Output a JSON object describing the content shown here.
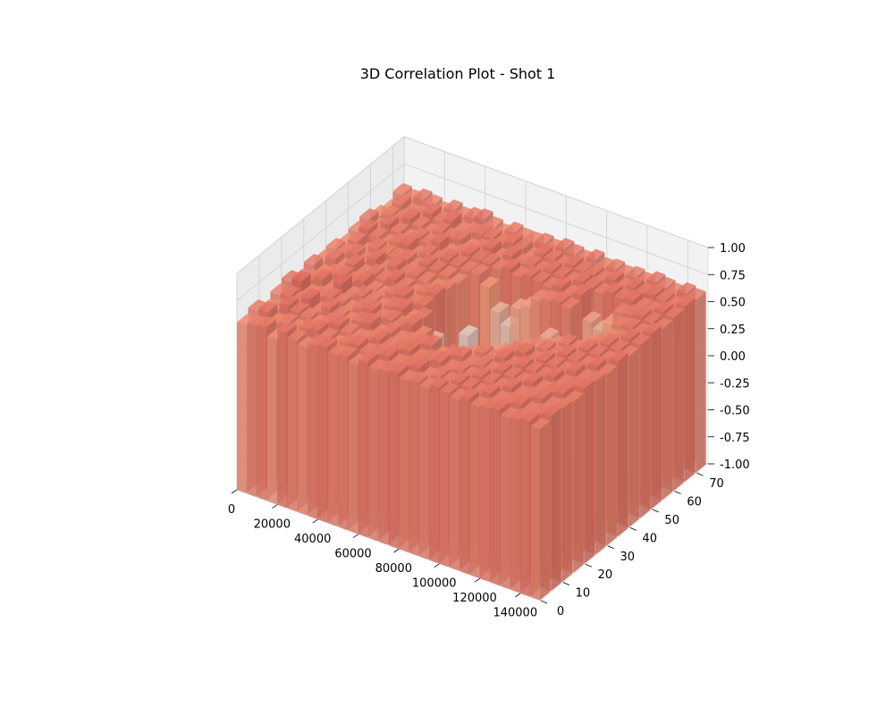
{
  "chart_data": {
    "type": "bar3d",
    "title": "3D Correlation Plot - Shot 1",
    "xlabel": "",
    "ylabel": "",
    "zlabel": "",
    "xlim": [
      0,
      150000
    ],
    "ylim": [
      0,
      75
    ],
    "zlim": [
      -1.0,
      1.0
    ],
    "x_ticks": [
      0,
      20000,
      40000,
      60000,
      80000,
      100000,
      120000,
      140000
    ],
    "y_ticks": [
      0,
      10,
      20,
      30,
      40,
      50,
      60,
      70
    ],
    "z_ticks": [
      "-1.00",
      "-0.75",
      "-0.50",
      "-0.25",
      "0.00",
      "0.25",
      "0.50",
      "0.75",
      "1.00"
    ],
    "colormap": "coolwarm",
    "grid": true,
    "x_bins": [
      0,
      5000,
      10000,
      15000,
      20000,
      25000,
      30000,
      35000,
      40000,
      45000,
      50000,
      55000,
      60000,
      65000,
      70000,
      75000,
      80000,
      85000,
      90000,
      95000,
      100000,
      105000,
      110000,
      115000,
      120000,
      125000,
      130000,
      135000,
      140000,
      145000
    ],
    "y_bins": [
      0,
      5,
      10,
      15,
      20,
      25,
      30,
      35,
      40,
      45,
      50,
      55,
      60,
      65,
      70
    ],
    "bar_base": -1.0,
    "values": [
      [
        0.55,
        0.6,
        0.52,
        0.58,
        0.62,
        0.55,
        0.6,
        0.56,
        0.58,
        0.54,
        0.57,
        0.6,
        0.55,
        0.52,
        0.58
      ],
      [
        0.58,
        0.62,
        0.56,
        0.6,
        0.65,
        0.58,
        0.54,
        0.6,
        0.57,
        0.59,
        0.62,
        0.55,
        0.58,
        0.6,
        0.56
      ],
      [
        0.6,
        0.55,
        0.63,
        0.58,
        0.56,
        0.62,
        0.58,
        0.55,
        0.6,
        0.52,
        0.58,
        0.62,
        0.57,
        0.55,
        0.6
      ],
      [
        0.52,
        0.58,
        0.6,
        0.64,
        0.58,
        0.55,
        0.6,
        0.62,
        0.56,
        0.6,
        0.55,
        0.58,
        0.62,
        0.56,
        0.58
      ],
      [
        0.62,
        0.56,
        0.58,
        0.55,
        0.6,
        0.65,
        0.58,
        0.56,
        0.62,
        0.58,
        0.6,
        0.55,
        0.58,
        0.62,
        0.55
      ],
      [
        0.58,
        0.6,
        0.55,
        0.62,
        0.58,
        0.56,
        0.62,
        0.6,
        0.55,
        0.58,
        0.62,
        0.6,
        0.55,
        0.58,
        0.6
      ],
      [
        0.55,
        0.62,
        0.6,
        0.58,
        0.55,
        0.6,
        0.56,
        0.58,
        0.62,
        0.6,
        0.55,
        0.58,
        0.6,
        0.62,
        0.57
      ],
      [
        0.6,
        0.58,
        0.62,
        0.56,
        0.6,
        0.58,
        0.55,
        0.62,
        0.58,
        0.56,
        0.6,
        0.62,
        0.58,
        0.55,
        0.6
      ],
      [
        0.62,
        0.55,
        0.58,
        0.6,
        0.62,
        0.56,
        0.6,
        0.58,
        0.6,
        0.62,
        0.58,
        0.55,
        0.6,
        0.58,
        0.62
      ],
      [
        0.58,
        0.6,
        0.56,
        0.62,
        0.58,
        0.6,
        0.62,
        0.55,
        0.58,
        0.6,
        0.62,
        0.58,
        0.55,
        0.6,
        0.58
      ],
      [
        0.6,
        0.62,
        0.58,
        0.55,
        0.6,
        0.62,
        0.58,
        0.6,
        0.55,
        0.58,
        0.6,
        0.62,
        0.58,
        0.6,
        0.55
      ],
      [
        0.56,
        0.58,
        0.62,
        0.6,
        0.58,
        0.55,
        0.6,
        0.62,
        0.58,
        0.55,
        0.58,
        0.6,
        0.62,
        0.58,
        0.6
      ],
      [
        0.62,
        0.6,
        0.58,
        0.56,
        0.62,
        0.6,
        0.3,
        -0.1,
        -0.25,
        0.1,
        0.58,
        0.6,
        0.56,
        0.62,
        0.58
      ],
      [
        0.58,
        0.62,
        0.6,
        0.58,
        0.55,
        0.2,
        -0.2,
        -0.45,
        -0.3,
        -0.15,
        0.5,
        0.58,
        0.62,
        0.6,
        0.58
      ],
      [
        0.6,
        0.58,
        0.62,
        0.6,
        0.4,
        -0.1,
        -0.4,
        -0.6,
        -0.5,
        -0.2,
        0.3,
        0.62,
        0.58,
        0.55,
        0.6
      ],
      [
        0.62,
        0.6,
        0.58,
        0.62,
        0.3,
        -0.2,
        -0.55,
        -0.65,
        -0.45,
        -0.35,
        0.2,
        0.58,
        0.6,
        0.62,
        0.58
      ],
      [
        0.58,
        0.62,
        0.6,
        0.55,
        0.35,
        -0.05,
        -0.5,
        -0.6,
        -0.55,
        -0.25,
        0.4,
        0.62,
        0.58,
        0.6,
        0.62
      ],
      [
        0.6,
        0.56,
        0.62,
        0.6,
        0.5,
        0.1,
        -0.35,
        -0.55,
        -0.6,
        -0.3,
        0.45,
        0.6,
        0.62,
        0.58,
        0.6
      ],
      [
        0.58,
        0.6,
        0.58,
        0.62,
        0.55,
        0.35,
        -0.1,
        -0.4,
        -0.35,
        0.05,
        0.55,
        0.58,
        0.6,
        0.62,
        0.58
      ],
      [
        0.62,
        0.58,
        0.6,
        0.58,
        0.6,
        0.5,
        0.25,
        -0.2,
        -0.3,
        0.2,
        0.58,
        0.62,
        0.58,
        0.6,
        0.62
      ],
      [
        0.6,
        0.62,
        0.58,
        0.6,
        0.58,
        0.55,
        0.4,
        0.1,
        0.05,
        0.35,
        0.6,
        0.58,
        0.62,
        0.6,
        0.58
      ],
      [
        0.58,
        0.6,
        0.62,
        0.58,
        0.62,
        0.6,
        0.55,
        0.3,
        -0.15,
        0.3,
        0.58,
        0.62,
        0.6,
        0.58,
        0.6
      ],
      [
        0.62,
        0.58,
        0.6,
        0.62,
        0.58,
        0.62,
        0.58,
        0.5,
        0.1,
        -0.2,
        -0.35,
        0.4,
        0.58,
        0.62,
        0.58
      ],
      [
        0.58,
        0.62,
        0.58,
        0.6,
        0.62,
        0.58,
        0.6,
        0.55,
        0.3,
        -0.25,
        -0.4,
        0.35,
        0.62,
        0.58,
        0.6
      ],
      [
        0.6,
        0.58,
        0.62,
        0.58,
        0.6,
        0.62,
        0.58,
        0.6,
        0.45,
        0.1,
        -0.1,
        0.45,
        0.6,
        0.62,
        0.58
      ],
      [
        0.62,
        0.6,
        0.58,
        0.62,
        0.58,
        0.6,
        0.62,
        0.58,
        0.55,
        0.4,
        0.35,
        0.58,
        0.62,
        0.6,
        0.62
      ],
      [
        0.58,
        0.62,
        0.6,
        0.58,
        0.62,
        0.58,
        0.6,
        0.62,
        0.58,
        0.55,
        0.58,
        0.6,
        0.58,
        0.62,
        0.6
      ],
      [
        0.6,
        0.58,
        0.62,
        0.6,
        0.58,
        0.62,
        0.58,
        0.6,
        0.62,
        0.58,
        0.6,
        0.62,
        0.58,
        0.6,
        0.58
      ],
      [
        0.62,
        0.6,
        0.58,
        0.62,
        0.6,
        0.58,
        0.62,
        0.58,
        0.6,
        0.62,
        0.58,
        0.6,
        0.62,
        0.58,
        0.62
      ],
      [
        0.58,
        0.62,
        0.6,
        0.58,
        0.62,
        0.6,
        0.58,
        0.62,
        0.58,
        0.6,
        0.62,
        0.58,
        0.6,
        0.62,
        0.6
      ]
    ]
  }
}
